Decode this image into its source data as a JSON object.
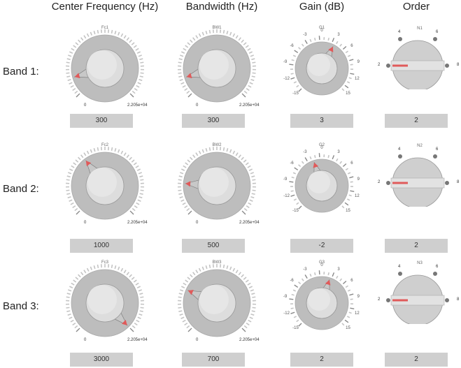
{
  "headers": {
    "center_frequency": "Center Frequency (Hz)",
    "bandwidth": "Bandwidth (Hz)",
    "gain": "Gain (dB)",
    "order": "Order"
  },
  "bands": [
    {
      "label": "Band 1:",
      "fc": {
        "title": "Fc1",
        "min": "0",
        "max": "2.205e+04",
        "value": "300"
      },
      "bw": {
        "title": "BW1",
        "min": "0",
        "max": "2.205e+04",
        "value": "300"
      },
      "gain": {
        "title": "G1",
        "value": "3",
        "gain_value": 3
      },
      "order": {
        "title": "N1",
        "value": "2",
        "pos_labels": [
          "2",
          "4",
          "6",
          "8"
        ]
      }
    },
    {
      "label": "Band 2:",
      "fc": {
        "title": "Fc2",
        "min": "0",
        "max": "2.205e+04",
        "value": "1000"
      },
      "bw": {
        "title": "BW2",
        "min": "0",
        "max": "2.205e+04",
        "value": "500"
      },
      "gain": {
        "title": "G2",
        "value": "-2",
        "gain_value": -2
      },
      "order": {
        "title": "N2",
        "value": "2",
        "pos_labels": [
          "2",
          "4",
          "6",
          "8"
        ]
      }
    },
    {
      "label": "Band 3:",
      "fc": {
        "title": "Fc3",
        "min": "0",
        "max": "2.205e+04",
        "value": "3000"
      },
      "bw": {
        "title": "BW3",
        "min": "0",
        "max": "2.205e+04",
        "value": "700"
      },
      "gain": {
        "title": "G3",
        "value": "2",
        "gain_value": 2
      },
      "order": {
        "title": "N3",
        "value": "2",
        "pos_labels": [
          "2",
          "4",
          "6",
          "8"
        ]
      }
    }
  ],
  "gain_ticks": [
    "-15",
    "-12",
    "-9",
    "-6",
    "-3",
    "0",
    "3",
    "6",
    "9",
    "12",
    "15"
  ],
  "gain_range": [
    -15,
    15
  ],
  "freq_range": [
    0,
    22050
  ],
  "colors": {
    "indicator": "#e05a5a",
    "knob_face": "#dddddd",
    "ring": "#bdbdbd",
    "value_box": "#cfcfcf"
  }
}
